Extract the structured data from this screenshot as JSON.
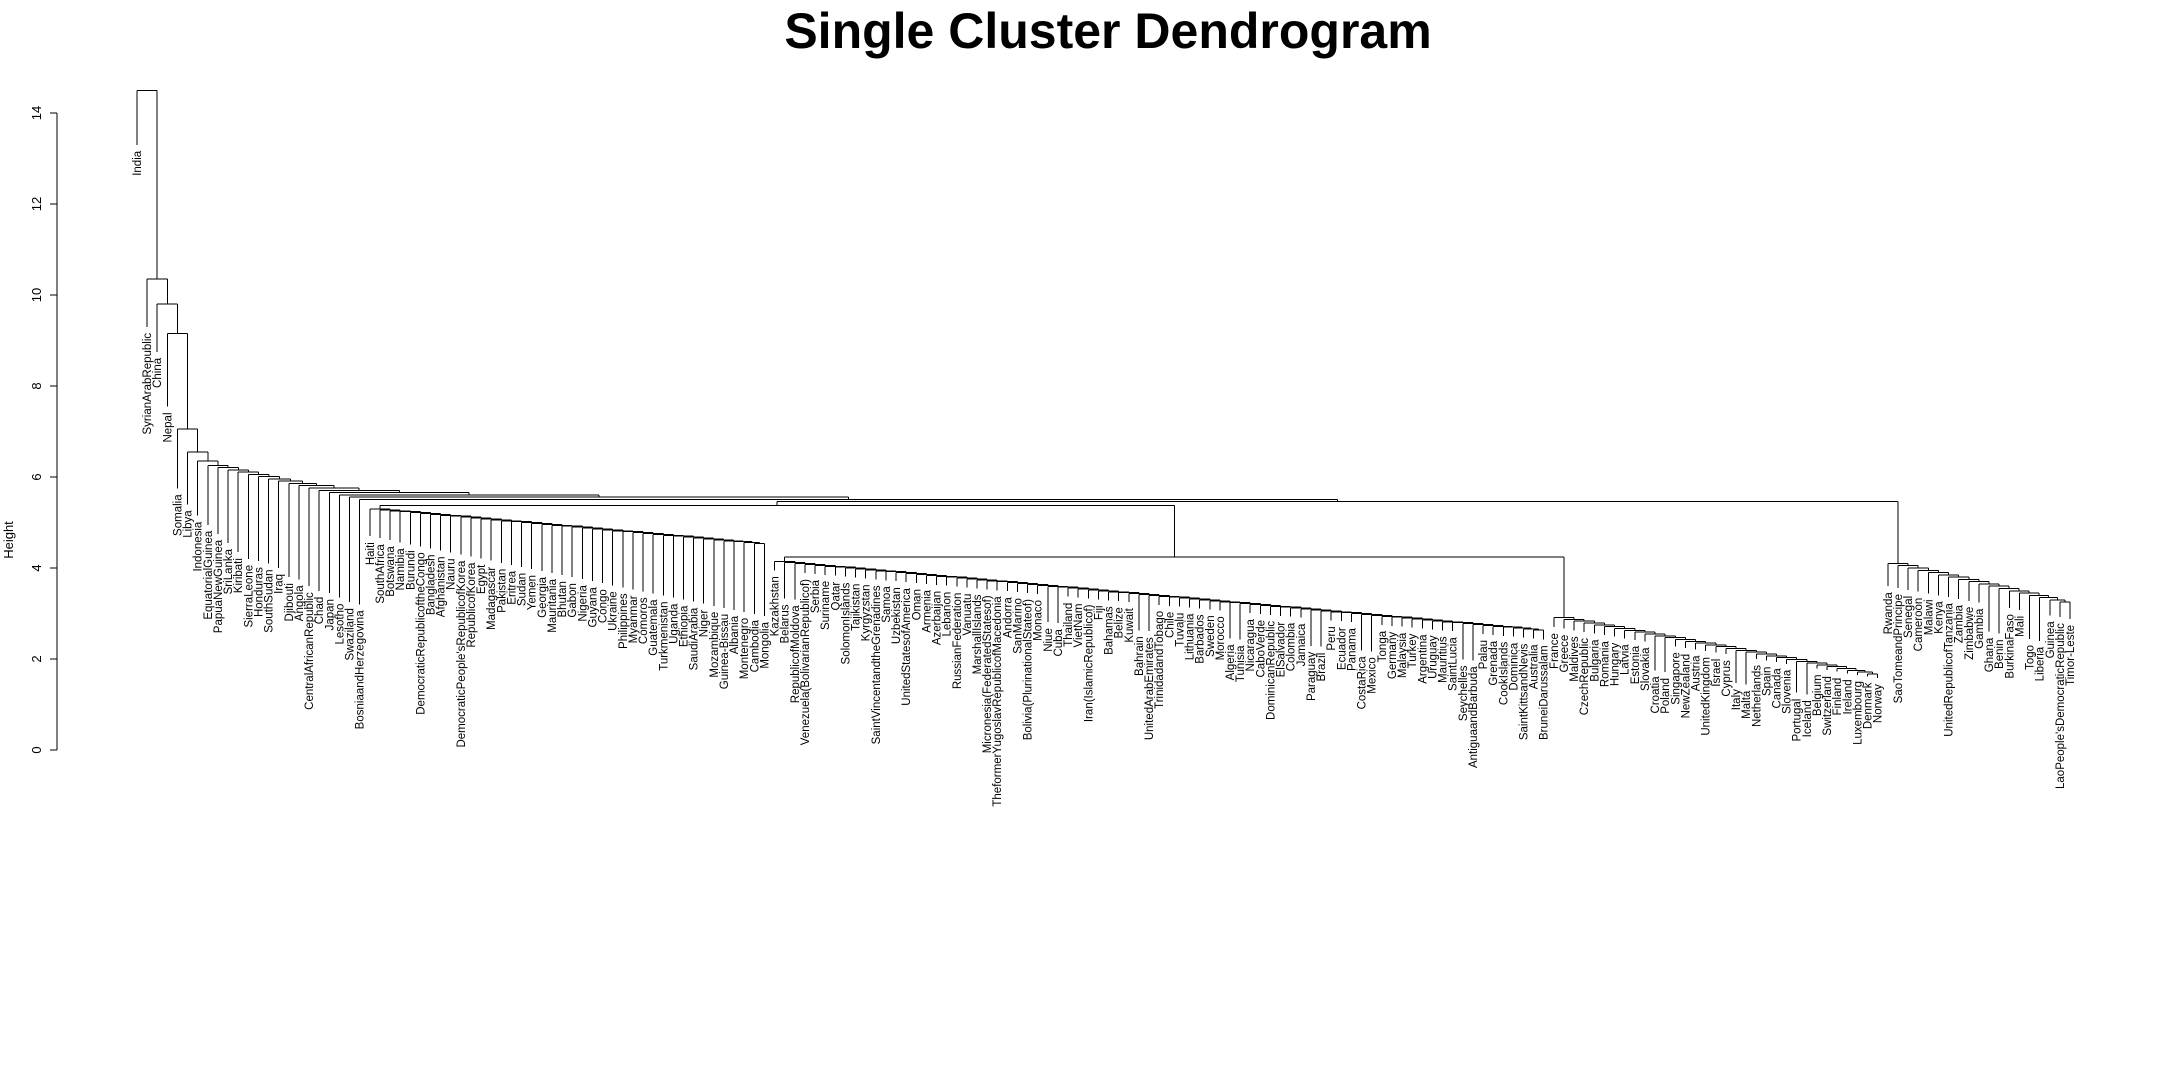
{
  "chart_data": {
    "type": "dendrogram",
    "title": "Single Cluster Dendrogram",
    "ylabel": "Height",
    "xlabel": "",
    "ylim": [
      0,
      15
    ],
    "yticks": [
      0,
      2,
      4,
      6,
      8,
      10,
      12,
      14
    ],
    "grid": false,
    "legend": "none",
    "leaves": [
      "India",
      "SyrianArabRepublic",
      "China",
      "Nepal",
      "Somalia",
      "Libya",
      "Indonesia",
      "EquatorialGuinea",
      "PapuaNewGuinea",
      "SriLanka",
      "Kiribati",
      "SierraLeone",
      "Honduras",
      "SouthSudan",
      "Iraq",
      "Djibouti",
      "Angola",
      "CentralAfricanRepublic",
      "Chad",
      "Japan",
      "Lesotho",
      "Swaziland",
      "BosniaandHerzegovina",
      "Haiti",
      "SouthAfrica",
      "Botswana",
      "Namibia",
      "Burundi",
      "DemocraticRepublicoftheCongo",
      "Bangladesh",
      "Afghanistan",
      "Nauru",
      "DemocraticPeople'sRepublicofKorea",
      "RepublicofKorea",
      "Egypt",
      "Madagascar",
      "Pakistan",
      "Eritrea",
      "Sudan",
      "Yemen",
      "Georgia",
      "Mauritania",
      "Bhutan",
      "Gabon",
      "Nigeria",
      "Guyana",
      "Congo",
      "Ukraine",
      "Philippines",
      "Myanmar",
      "Comoros",
      "Guatemala",
      "Turkmenistan",
      "Uganda",
      "Ethiopia",
      "SaudiArabia",
      "Niger",
      "Mozambique",
      "Guinea-Bissau",
      "Albania",
      "Montenegro",
      "Cambodia",
      "Mongolia",
      "Kazakhstan",
      "Belarus",
      "RepublicofMoldova",
      "Venezuela(BolivarianRepublicof)",
      "Serbia",
      "Suriname",
      "Qatar",
      "SolomonIslands",
      "Tajikistan",
      "Kyrgyzstan",
      "SaintVincentandtheGrenadines",
      "Samoa",
      "Uzbekistan",
      "UnitedStatesofAmerica",
      "Oman",
      "Armenia",
      "Azerbaijan",
      "Lebanon",
      "RussianFederation",
      "Vanuatu",
      "MarshallIslands",
      "Micronesia(FederatedStatesof)",
      "TheformerYugoslavRepublicofMacedonia",
      "Andorra",
      "SanMarino",
      "Bolivia(PlurinationalStateof)",
      "Monaco",
      "Niue",
      "Cuba",
      "Thailand",
      "VietNam",
      "Iran(IslamicRepublicof)",
      "Fiji",
      "Bahamas",
      "Belize",
      "Kuwait",
      "Bahrain",
      "UnitedArabEmirates",
      "TrinidadandTobago",
      "Chile",
      "Tuvalu",
      "Lithuania",
      "Barbados",
      "Sweden",
      "Morocco",
      "Algeria",
      "Tunisia",
      "Nicaragua",
      "CaboVerde",
      "DominicanRepublic",
      "ElSalvador",
      "Colombia",
      "Jamaica",
      "Paraguay",
      "Brazil",
      "Peru",
      "Ecuador",
      "Panama",
      "CostaRica",
      "Mexico",
      "Tonga",
      "Germany",
      "Malaysia",
      "Turkey",
      "Argentina",
      "Uruguay",
      "Mauritius",
      "SaintLucia",
      "Seychelles",
      "AntiguaandBarbuda",
      "Palau",
      "Grenada",
      "CookIslands",
      "Dominica",
      "SaintKittsandNevis",
      "Australia",
      "BruneiDarussalam",
      "France",
      "Greece",
      "Maldives",
      "CzechRepublic",
      "Bulgaria",
      "Romania",
      "Hungary",
      "Latvia",
      "Estonia",
      "Slovakia",
      "Croatia",
      "Poland",
      "Singapore",
      "NewZealand",
      "Austria",
      "UnitedKingdom",
      "Israel",
      "Cyprus",
      "Italy",
      "Malta",
      "Netherlands",
      "Spain",
      "Canada",
      "Slovenia",
      "Portugal",
      "Iceland",
      "Belgium",
      "Switzerland",
      "Finland",
      "Ireland",
      "Luxembourg",
      "Denmark",
      "Norway",
      "Rwanda",
      "SaoTomeandPrincipe",
      "Senegal",
      "Cameroon",
      "Malawi",
      "Kenya",
      "UnitedRepublicofTanzania",
      "Zambia",
      "Zimbabwe",
      "Gambia",
      "Ghana",
      "Benin",
      "BurkinaFaso",
      "Mali",
      "Togo",
      "Liberia",
      "Guinea",
      "LaoPeople'sDemocraticRepublic",
      "Timor-Leste"
    ],
    "merge_heights": {
      "root": 14.5,
      "Nepal_China_Syria_chain": [
        10.35,
        9.8,
        9.15
      ],
      "backbone_descending": [
        7.05,
        6.55,
        6.35,
        6.2,
        6.1,
        5.95,
        5.9,
        5.8,
        5.75,
        5.65,
        5.55,
        5.5,
        5.45,
        5.3,
        5.25,
        5.2,
        5.15,
        5.1,
        5.0,
        4.95,
        4.9,
        4.85,
        4.8,
        4.75,
        4.7,
        4.65,
        4.6,
        4.55
      ],
      "major_branch_join": 4.6,
      "right_subgroup_join": 4.55,
      "right_subgroup_internal": [
        4.15,
        4.1,
        4.05,
        4.0,
        3.9,
        3.75,
        3.6,
        3.5,
        3.3
      ]
    }
  }
}
